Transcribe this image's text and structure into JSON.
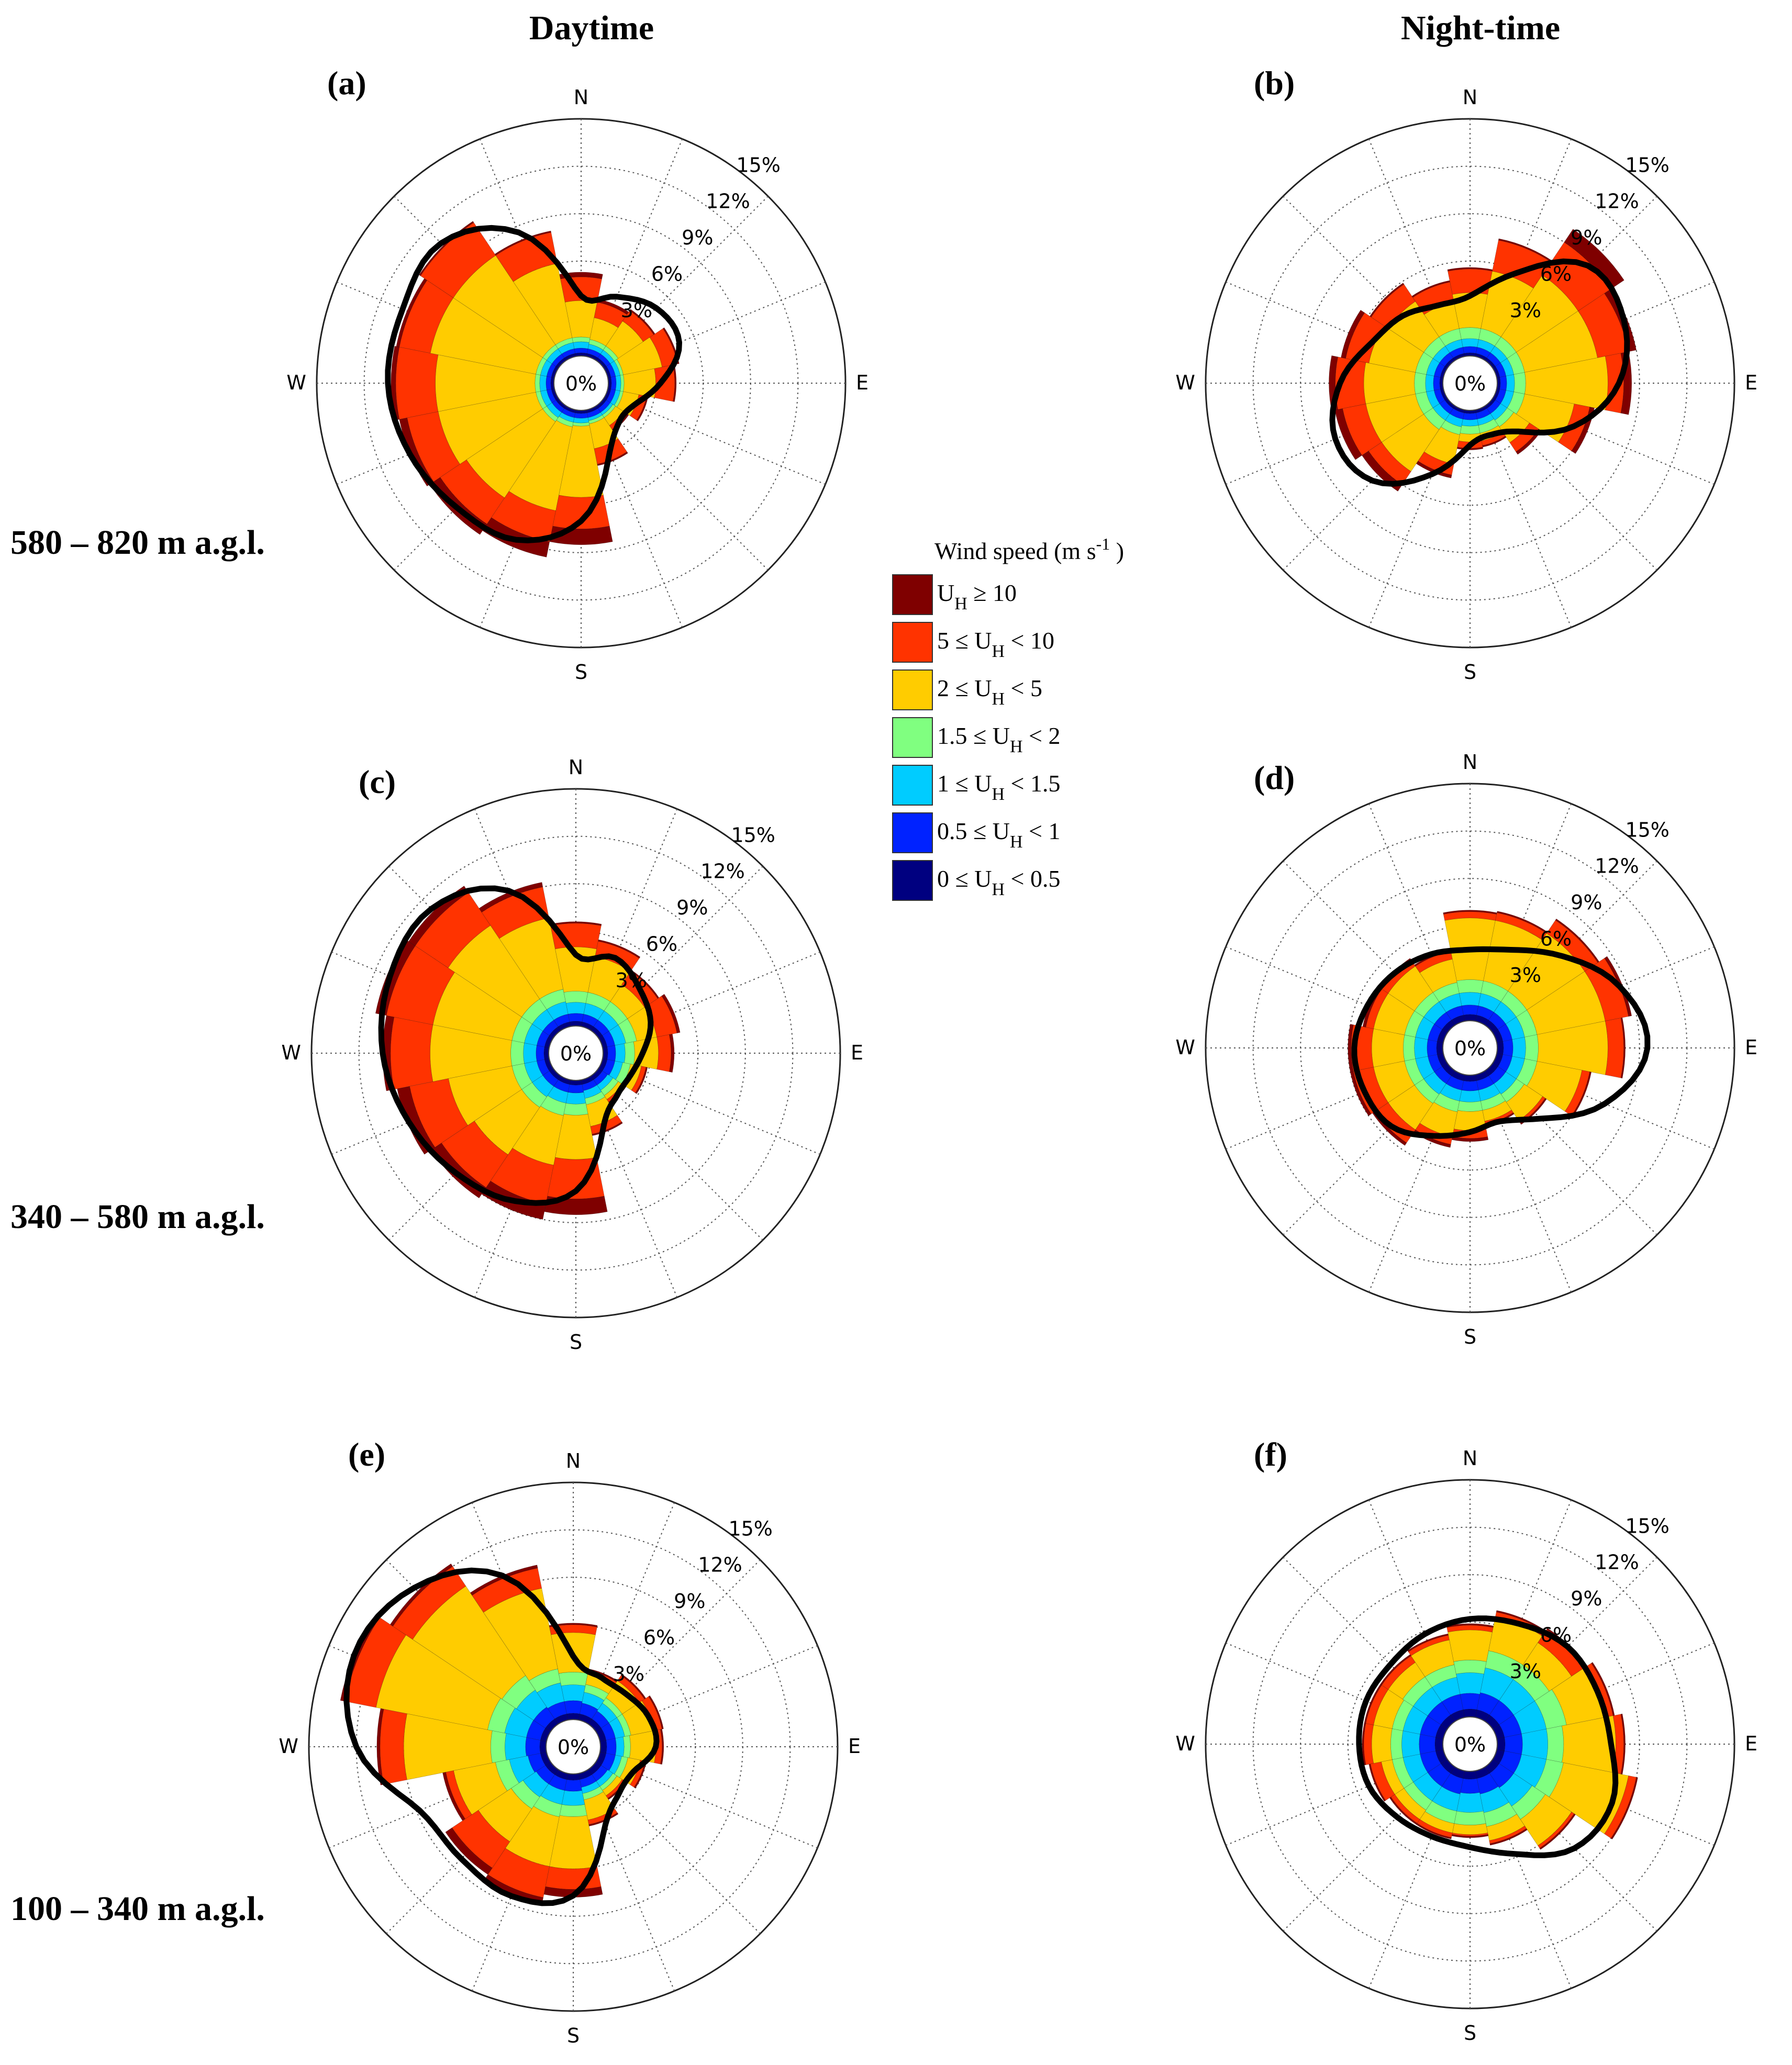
{
  "column_titles": {
    "day": "Daytime",
    "night": "Night-time"
  },
  "row_labels": [
    "580 – 820 m a.g.l.",
    "340 – 580 m a.g.l.",
    "100 – 340 m a.g.l."
  ],
  "center_label": "0%",
  "compass": {
    "n": "N",
    "e": "E",
    "s": "S",
    "w": "W"
  },
  "legend": {
    "title": "Wind speed (m s",
    "title_sup": "-1",
    "title_end": " )",
    "items": [
      {
        "pre": "U",
        "sub": "H",
        "post": " ≥ 10",
        "color": "#7f0000"
      },
      {
        "pre": "5 ≤ U",
        "sub": "H",
        "post": " < 10",
        "color": "#ff3300"
      },
      {
        "pre": "2 ≤ U",
        "sub": "H",
        "post": " < 5",
        "color": "#ffcc00"
      },
      {
        "pre": "1.5 ≤ U",
        "sub": "H",
        "post": " < 2",
        "color": "#80ff80"
      },
      {
        "pre": "1 ≤ U",
        "sub": "H",
        "post": " < 1.5",
        "color": "#00ccff"
      },
      {
        "pre": "0.5 ≤ U",
        "sub": "H",
        "post": " < 1",
        "color": "#0022ff"
      },
      {
        "pre": "0 ≤ U",
        "sub": "H",
        "post": " < 0.5",
        "color": "#000080"
      }
    ]
  },
  "chart_data": [
    {
      "panel": "(a)",
      "type": "polar-bar-stacked",
      "title": "Daytime",
      "height_range": "580 – 820 m a.g.l.",
      "rlim": [
        0,
        15
      ],
      "rticks": [
        "3%",
        "6%",
        "9%",
        "12%",
        "15%"
      ],
      "directions": [
        "N",
        "NNE",
        "NE",
        "ENE",
        "E",
        "ESE",
        "SE",
        "SSE",
        "S",
        "SSW",
        "SW",
        "WSW",
        "W",
        "WNW",
        "NW",
        "NNW"
      ],
      "bins": [
        "0-0.5",
        "0.5-1",
        "1-1.5",
        "1.5-2",
        "2-5",
        "5-10",
        ">=10"
      ],
      "cumulative": [
        [
          0.2,
          0.5,
          0.9,
          1.2,
          3.5,
          5.0,
          5.3
        ],
        [
          0.2,
          0.5,
          0.8,
          1.1,
          2.5,
          3.5,
          3.7
        ],
        [
          0.2,
          0.5,
          0.8,
          1.1,
          3.0,
          3.8,
          3.9
        ],
        [
          0.2,
          0.5,
          0.8,
          1.0,
          3.5,
          4.5,
          4.6
        ],
        [
          0.2,
          0.5,
          0.8,
          1.0,
          3.0,
          4.2,
          4.3
        ],
        [
          0.2,
          0.5,
          0.8,
          1.0,
          2.0,
          2.5,
          2.6
        ],
        [
          0.2,
          0.5,
          0.7,
          0.9,
          1.5,
          1.8,
          1.9
        ],
        [
          0.2,
          0.5,
          0.7,
          0.9,
          2.5,
          3.5,
          3.6
        ],
        [
          0.2,
          0.5,
          0.8,
          1.0,
          5.5,
          7.5,
          8.5
        ],
        [
          0.2,
          0.5,
          0.8,
          1.1,
          6.5,
          8.5,
          9.5
        ],
        [
          0.2,
          0.5,
          0.9,
          1.2,
          7.0,
          9.0,
          9.8
        ],
        [
          0.2,
          0.5,
          0.9,
          1.2,
          7.5,
          9.5,
          10.0
        ],
        [
          0.2,
          0.5,
          0.9,
          1.2,
          7.5,
          10.0,
          10.3
        ],
        [
          0.2,
          0.5,
          0.9,
          1.2,
          8.0,
          10.0,
          10.2
        ],
        [
          0.2,
          0.5,
          0.9,
          1.2,
          8.0,
          10.5,
          10.6
        ],
        [
          0.2,
          0.5,
          0.9,
          1.2,
          6.0,
          8.0,
          8.1
        ]
      ],
      "outline": [
        3.8,
        4.2,
        5.0,
        5.0,
        3.3,
        1.9,
        1.7,
        3.0,
        7.0,
        9.0,
        9.4,
        10.0,
        10.5,
        10.5,
        10.8,
        8.6
      ]
    },
    {
      "panel": "(b)",
      "type": "polar-bar-stacked",
      "title": "Night-time",
      "height_range": "580 – 820 m a.g.l.",
      "rlim": [
        0,
        15
      ],
      "rticks": [
        "3%",
        "6%",
        "9%",
        "12%",
        "15%"
      ],
      "directions": [
        "N",
        "NNE",
        "NE",
        "ENE",
        "E",
        "ESE",
        "SE",
        "SSE",
        "S",
        "SSW",
        "SW",
        "WSW",
        "W",
        "WNW",
        "NW",
        "NNW"
      ],
      "bins": [
        "0-0.5",
        "0.5-1",
        "1-1.5",
        "1.5-2",
        "2-5",
        "5-10",
        ">=10"
      ],
      "cumulative": [
        [
          0.2,
          0.6,
          1.1,
          1.8,
          4.0,
          5.5,
          5.6
        ],
        [
          0.2,
          0.6,
          1.1,
          1.8,
          5.5,
          7.5,
          7.6
        ],
        [
          0.2,
          0.6,
          1.1,
          1.8,
          6.5,
          9.0,
          10.0
        ],
        [
          0.2,
          0.6,
          1.1,
          1.8,
          6.5,
          8.5,
          9.0
        ],
        [
          0.2,
          0.6,
          1.1,
          1.8,
          7.0,
          8.0,
          8.5
        ],
        [
          0.2,
          0.6,
          1.1,
          1.8,
          5.0,
          6.0,
          6.3
        ],
        [
          0.2,
          0.6,
          1.1,
          1.6,
          2.8,
          3.5,
          3.7
        ],
        [
          0.2,
          0.6,
          1.0,
          1.5,
          2.0,
          2.3,
          2.4
        ],
        [
          0.2,
          0.6,
          1.0,
          1.5,
          2.0,
          2.4,
          2.5
        ],
        [
          0.2,
          0.6,
          1.1,
          1.6,
          3.5,
          4.2,
          4.4
        ],
        [
          0.2,
          0.6,
          1.1,
          1.8,
          5.0,
          6.0,
          6.5
        ],
        [
          0.2,
          0.6,
          1.1,
          1.8,
          5.0,
          6.5,
          7.0
        ],
        [
          0.2,
          0.6,
          1.1,
          1.8,
          5.0,
          6.8,
          7.2
        ],
        [
          0.2,
          0.6,
          1.1,
          1.8,
          4.8,
          6.3,
          6.6
        ],
        [
          0.2,
          0.6,
          1.1,
          1.8,
          4.5,
          5.8,
          5.9
        ],
        [
          0.2,
          0.6,
          1.1,
          1.8,
          3.5,
          4.8,
          4.9
        ]
      ],
      "outline": [
        3.8,
        5.8,
        8.8,
        8.8,
        7.7,
        5.4,
        2.6,
        1.8,
        2.2,
        4.5,
        7.0,
        7.5,
        6.5,
        5.0,
        4.3,
        3.6
      ]
    },
    {
      "panel": "(c)",
      "type": "polar-bar-stacked",
      "title": "Daytime",
      "height_range": "340 – 580 m a.g.l.",
      "rlim": [
        0,
        15
      ],
      "rticks": [
        "3%",
        "6%",
        "9%",
        "12%",
        "15%"
      ],
      "directions": [
        "N",
        "NNE",
        "NE",
        "ENE",
        "E",
        "ESE",
        "SE",
        "SSE",
        "S",
        "SSW",
        "SW",
        "WSW",
        "W",
        "WNW",
        "NW",
        "NNW"
      ],
      "bins": [
        "0-0.5",
        "0.5-1",
        "1-1.5",
        "1.5-2",
        "2-5",
        "5-10",
        ">=10"
      ],
      "cumulative": [
        [
          0.3,
          0.8,
          1.5,
          2.2,
          5.0,
          6.5,
          6.6
        ],
        [
          0.3,
          0.8,
          1.5,
          2.2,
          4.5,
          5.5,
          5.6
        ],
        [
          0.3,
          0.8,
          1.5,
          2.2,
          3.5,
          4.5,
          4.6
        ],
        [
          0.3,
          0.8,
          1.5,
          2.2,
          3.5,
          4.8,
          5.0
        ],
        [
          0.3,
          0.8,
          1.4,
          2.0,
          3.5,
          4.3,
          4.5
        ],
        [
          0.3,
          0.8,
          1.3,
          1.8,
          2.5,
          2.8,
          2.9
        ],
        [
          0.3,
          0.7,
          1.1,
          1.5,
          1.8,
          2.0,
          2.1
        ],
        [
          0.3,
          0.7,
          1.2,
          1.6,
          3.0,
          3.5,
          3.6
        ],
        [
          0.3,
          0.8,
          1.5,
          2.2,
          5.0,
          7.5,
          8.5
        ],
        [
          0.3,
          0.8,
          1.5,
          2.3,
          5.5,
          8.0,
          9.0
        ],
        [
          0.3,
          0.8,
          1.6,
          2.4,
          6.0,
          8.5,
          9.3
        ],
        [
          0.3,
          0.8,
          1.6,
          2.4,
          6.5,
          9.0,
          9.8
        ],
        [
          0.3,
          0.8,
          1.6,
          2.4,
          7.5,
          10.0,
          10.5
        ],
        [
          0.3,
          0.8,
          1.6,
          2.4,
          7.5,
          10.5,
          11.2
        ],
        [
          0.3,
          0.8,
          1.6,
          2.4,
          8.0,
          10.5,
          11.0
        ],
        [
          0.3,
          0.8,
          1.6,
          2.4,
          7.0,
          9.0,
          9.3
        ]
      ],
      "outline": [
        4.5,
        4.8,
        4.0,
        3.4,
        2.5,
        2.0,
        2.0,
        3.0,
        7.0,
        8.4,
        9.0,
        9.7,
        10.5,
        11.0,
        11.2,
        9.4
      ]
    },
    {
      "panel": "(d)",
      "type": "polar-bar-stacked",
      "title": "Night-time",
      "height_range": "340 – 580 m a.g.l.",
      "rlim": [
        0,
        15
      ],
      "rticks": [
        "3%",
        "6%",
        "9%",
        "12%",
        "15%"
      ],
      "directions": [
        "N",
        "NNE",
        "NE",
        "ENE",
        "E",
        "ESE",
        "SE",
        "SSE",
        "S",
        "SSW",
        "SW",
        "WSW",
        "W",
        "WNW",
        "NW",
        "NNW"
      ],
      "bins": [
        "0-0.5",
        "0.5-1",
        "1-1.5",
        "1.5-2",
        "2-5",
        "5-10",
        ">=10"
      ],
      "cumulative": [
        [
          0.4,
          1.0,
          1.8,
          2.6,
          6.5,
          6.9,
          7.0
        ],
        [
          0.4,
          1.0,
          1.8,
          2.6,
          6.5,
          7.0,
          7.1
        ],
        [
          0.4,
          1.0,
          1.8,
          2.6,
          7.0,
          8.0,
          8.1
        ],
        [
          0.4,
          1.0,
          1.8,
          2.6,
          7.0,
          8.5,
          8.7
        ],
        [
          0.4,
          1.0,
          1.8,
          2.6,
          7.0,
          8.0,
          8.1
        ],
        [
          0.4,
          1.0,
          1.8,
          2.6,
          5.5,
          6.0,
          6.1
        ],
        [
          0.4,
          1.0,
          1.8,
          2.4,
          3.8,
          4.0,
          4.1
        ],
        [
          0.4,
          1.0,
          1.7,
          2.3,
          3.0,
          3.2,
          3.3
        ],
        [
          0.4,
          1.0,
          1.7,
          2.3,
          3.5,
          4.0,
          4.2
        ],
        [
          0.4,
          1.0,
          1.7,
          2.4,
          4.0,
          4.5,
          4.7
        ],
        [
          0.4,
          1.0,
          1.8,
          2.5,
          4.5,
          5.5,
          5.7
        ],
        [
          0.4,
          1.0,
          1.8,
          2.5,
          4.5,
          5.8,
          6.0
        ],
        [
          0.4,
          1.0,
          1.8,
          2.5,
          4.5,
          5.8,
          6.0
        ],
        [
          0.4,
          1.0,
          1.8,
          2.5,
          4.5,
          5.0,
          5.2
        ],
        [
          0.4,
          1.0,
          1.8,
          2.5,
          4.5,
          5.0,
          5.1
        ],
        [
          0.4,
          1.0,
          1.8,
          2.5,
          4.0,
          4.5,
          4.6
        ]
      ],
      "outline": [
        4.5,
        5.0,
        6.5,
        8.5,
        9.5,
        7.5,
        4.6,
        3.3,
        3.6,
        4.3,
        5.3,
        5.5,
        5.6,
        5.3,
        5.0,
        4.7
      ]
    },
    {
      "panel": "(e)",
      "type": "polar-bar-stacked",
      "title": "Daytime",
      "height_range": "100 – 340 m a.g.l.",
      "rlim": [
        0,
        15
      ],
      "rticks": [
        "3%",
        "6%",
        "9%",
        "12%",
        "15%"
      ],
      "directions": [
        "N",
        "NNE",
        "NE",
        "ENE",
        "E",
        "ESE",
        "SE",
        "SSE",
        "S",
        "SSW",
        "SW",
        "WSW",
        "W",
        "WNW",
        "NW",
        "NNW"
      ],
      "bins": [
        "0-0.5",
        "0.5-1",
        "1-1.5",
        "1.5-2",
        "2-5",
        "5-10",
        ">=10"
      ],
      "cumulative": [
        [
          0.4,
          1.2,
          2.2,
          3.0,
          5.5,
          6.0,
          6.1
        ],
        [
          0.4,
          1.1,
          1.8,
          2.3,
          3.0,
          3.2,
          3.3
        ],
        [
          0.4,
          1.0,
          1.6,
          2.0,
          3.3,
          3.7,
          3.8
        ],
        [
          0.4,
          1.0,
          1.6,
          2.0,
          3.5,
          4.0,
          4.1
        ],
        [
          0.4,
          1.0,
          1.5,
          1.9,
          3.5,
          3.9,
          4.0
        ],
        [
          0.4,
          1.0,
          1.4,
          1.8,
          2.6,
          2.9,
          3.0
        ],
        [
          0.4,
          0.9,
          1.3,
          1.6,
          2.0,
          2.2,
          2.3
        ],
        [
          0.4,
          0.9,
          1.3,
          1.7,
          3.0,
          3.3,
          3.4
        ],
        [
          0.4,
          1.1,
          2.0,
          2.7,
          6.0,
          7.3,
          7.8
        ],
        [
          0.4,
          1.1,
          2.0,
          2.8,
          6.0,
          8.0,
          8.5
        ],
        [
          0.4,
          1.1,
          2.1,
          3.0,
          5.5,
          7.5,
          8.0
        ],
        [
          0.4,
          1.2,
          2.4,
          3.3,
          6.0,
          6.5,
          6.7
        ],
        [
          0.4,
          1.3,
          2.6,
          3.5,
          9.0,
          10.5,
          10.7
        ],
        [
          0.4,
          1.3,
          2.7,
          3.8,
          11.0,
          13.0,
          13.3
        ],
        [
          0.4,
          1.3,
          2.6,
          3.7,
          10.5,
          12.0,
          12.2
        ],
        [
          0.4,
          1.2,
          2.4,
          3.3,
          8.5,
          9.8,
          10.0
        ]
      ],
      "outline": [
        4.0,
        3.0,
        3.0,
        3.4,
        3.5,
        2.4,
        2.4,
        3.6,
        7.7,
        8.5,
        8.3,
        8.8,
        12.0,
        13.3,
        12.5,
        10.0
      ]
    },
    {
      "panel": "(f)",
      "type": "polar-bar-stacked",
      "title": "Night-time",
      "height_range": "100 – 340 m a.g.l.",
      "rlim": [
        0,
        15
      ],
      "rticks": [
        "3%",
        "6%",
        "9%",
        "12%",
        "15%"
      ],
      "directions": [
        "N",
        "NNE",
        "NE",
        "ENE",
        "E",
        "ESE",
        "SE",
        "SSE",
        "S",
        "SSW",
        "SW",
        "WSW",
        "W",
        "WNW",
        "NW",
        "NNW"
      ],
      "bins": [
        "0-0.5",
        "0.5-1",
        "1-1.5",
        "1.5-2",
        "2-5",
        "5-10",
        ">=10"
      ],
      "cumulative": [
        [
          0.5,
          1.5,
          2.8,
          3.6,
          5.5,
          5.8,
          5.9
        ],
        [
          0.5,
          1.6,
          3.2,
          4.3,
          6.5,
          6.8,
          6.9
        ],
        [
          0.5,
          1.6,
          3.2,
          4.3,
          6.0,
          7.0,
          7.1
        ],
        [
          0.5,
          1.6,
          3.2,
          4.5,
          7.0,
          7.5,
          7.6
        ],
        [
          0.5,
          1.6,
          3.2,
          4.2,
          7.5,
          8.0,
          8.1
        ],
        [
          0.5,
          1.6,
          3.2,
          4.3,
          8.5,
          9.0,
          9.1
        ],
        [
          0.5,
          1.6,
          3.0,
          4.0,
          6.0,
          6.2,
          6.3
        ],
        [
          0.5,
          1.5,
          2.7,
          3.6,
          4.5,
          4.7,
          4.8
        ],
        [
          0.5,
          1.4,
          2.6,
          3.4,
          4.0,
          4.1,
          4.2
        ],
        [
          0.5,
          1.5,
          2.6,
          3.4,
          4.0,
          4.3,
          4.4
        ],
        [
          0.5,
          1.5,
          2.6,
          3.3,
          4.0,
          4.3,
          4.4
        ],
        [
          0.5,
          1.5,
          2.6,
          3.3,
          4.0,
          4.7,
          4.8
        ],
        [
          0.5,
          1.5,
          2.6,
          3.3,
          4.5,
          5.0,
          5.1
        ],
        [
          0.5,
          1.5,
          2.6,
          3.3,
          4.5,
          5.0,
          5.1
        ],
        [
          0.5,
          1.5,
          2.6,
          3.4,
          4.5,
          5.0,
          5.1
        ],
        [
          0.5,
          1.5,
          2.6,
          3.4,
          5.0,
          5.3,
          5.4
        ]
      ],
      "outline": [
        6.2,
        6.5,
        7.0,
        7.0,
        7.2,
        8.0,
        7.6,
        5.8,
        4.8,
        4.6,
        4.8,
        5.2,
        5.3,
        5.4,
        5.4,
        5.8
      ]
    }
  ]
}
